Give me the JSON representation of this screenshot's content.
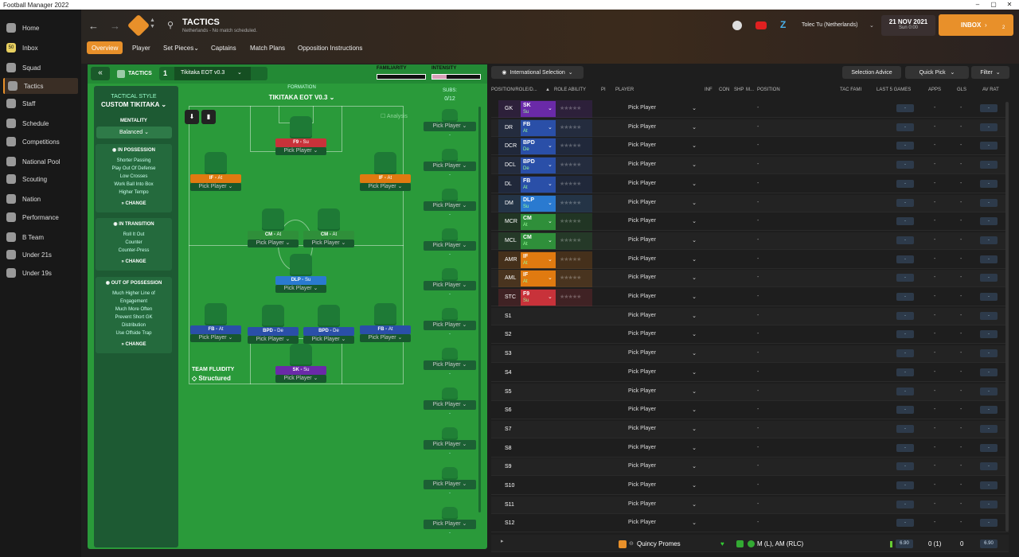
{
  "window": {
    "title": "Football Manager 2022"
  },
  "sidebar": {
    "items": [
      {
        "label": "Home",
        "icon": "home-icon"
      },
      {
        "label": "Inbox",
        "icon": "inbox-icon",
        "badge": "50"
      },
      {
        "label": "Squad",
        "icon": "squad-icon"
      },
      {
        "label": "Tactics",
        "icon": "tactics-icon"
      },
      {
        "label": "Staff",
        "icon": "staff-icon"
      },
      {
        "label": "Schedule",
        "icon": "calendar-icon"
      },
      {
        "label": "Competitions",
        "icon": "trophy-icon"
      },
      {
        "label": "National Pool",
        "icon": "list-icon"
      },
      {
        "label": "Scouting",
        "icon": "search-icon"
      },
      {
        "label": "Nation",
        "icon": "shield-icon"
      },
      {
        "label": "Performance",
        "icon": "chart-icon"
      },
      {
        "label": "B Team",
        "icon": "people-icon"
      },
      {
        "label": "Under 21s",
        "icon": "people-icon"
      },
      {
        "label": "Under 19s",
        "icon": "people-icon"
      }
    ]
  },
  "header": {
    "title": "TACTICS",
    "subtitle": "Netherlands - No match scheduled.",
    "manager": "Tolec Tu (Netherlands)",
    "date": "21 NOV 2021",
    "time": "Sun 0:00",
    "inbox_label": "INBOX",
    "inbox_count": "2"
  },
  "tabs": [
    "Overview",
    "Player",
    "Set Pieces",
    "Captains",
    "Match Plans",
    "Opposition Instructions"
  ],
  "tacbar": {
    "tactics_label": "TACTICS",
    "slot": "1",
    "tactic_name": "Tikitaka EOT v0.3",
    "familiarity": "FAMILIARITY",
    "intensity": "INTENSITY"
  },
  "left": {
    "style_label": "TACTICAL STYLE",
    "style_value": "CUSTOM TIKITAKA",
    "mentality_label": "MENTALITY",
    "mentality_value": "Balanced",
    "possession": {
      "title": "IN POSSESSION",
      "items": [
        "Shorter Passing",
        "Play Out Of Defense",
        "Low Crosses",
        "Work Ball Into Box",
        "Higher Tempo"
      ],
      "change": "CHANGE"
    },
    "transition": {
      "title": "IN TRANSITION",
      "items": [
        "Roll It Out",
        "Counter",
        "Counter-Press"
      ],
      "change": "CHANGE"
    },
    "oop": {
      "title": "OUT OF POSSESSION",
      "items": [
        "Much Higher Line of",
        "Engagement",
        "Much More Often",
        "Prevent Short GK",
        "Distribution",
        "Use Offside Trap"
      ],
      "change": "CHANGE"
    }
  },
  "formation": {
    "label": "FORMATION",
    "name": "TIKITAKA EOT V0.3",
    "subs_label": "SUBS:",
    "subs_count": "0/12",
    "analysis": "Analysis",
    "fluidity_label": "TEAM FLUIDITY",
    "fluidity_value": "Structured",
    "pick": "Pick Player",
    "players": [
      {
        "role": "F9",
        "duty": "Su",
        "color": "#c8323a"
      },
      {
        "role": "IF",
        "duty": "At",
        "color": "#e07a10"
      },
      {
        "role": "IF",
        "duty": "At",
        "color": "#e07a10"
      },
      {
        "role": "CM",
        "duty": "At",
        "color": "#2f8f3a"
      },
      {
        "role": "CM",
        "duty": "At",
        "color": "#2f8f3a"
      },
      {
        "role": "DLP",
        "duty": "Su",
        "color": "#2a7ad0"
      },
      {
        "role": "FB",
        "duty": "At",
        "color": "#2a4fa8"
      },
      {
        "role": "BPD",
        "duty": "De",
        "color": "#2a4fa8"
      },
      {
        "role": "BPD",
        "duty": "De",
        "color": "#2a4fa8"
      },
      {
        "role": "FB",
        "duty": "At",
        "color": "#2a4fa8"
      },
      {
        "role": "SK",
        "duty": "Su",
        "color": "#6a2aa8"
      }
    ]
  },
  "right": {
    "selection": "International Selection",
    "advice": "Selection Advice",
    "quick_pick": "Quick Pick",
    "filter": "Filter",
    "columns": [
      "POSITION/ROLE/D...",
      "ROLE ABILITY",
      "PI",
      "PLAYER",
      "INF",
      "CON",
      "SHP",
      "M...",
      "POSITION",
      "TAC FAMI",
      "LAST 5 GAMES",
      "APPS",
      "GLS",
      "AV RAT"
    ],
    "rows": [
      {
        "pos": "GK",
        "role": "SK",
        "duty": "Su",
        "color": "#6a2aa8"
      },
      {
        "pos": "DR",
        "role": "FB",
        "duty": "At",
        "color": "#2a4fa8"
      },
      {
        "pos": "DCR",
        "role": "BPD",
        "duty": "De",
        "color": "#2a4fa8"
      },
      {
        "pos": "DCL",
        "role": "BPD",
        "duty": "De",
        "color": "#2a4fa8"
      },
      {
        "pos": "DL",
        "role": "FB",
        "duty": "At",
        "color": "#2a4fa8"
      },
      {
        "pos": "DM",
        "role": "DLP",
        "duty": "Su",
        "color": "#2a7ad0"
      },
      {
        "pos": "MCR",
        "role": "CM",
        "duty": "At",
        "color": "#2f8f3a"
      },
      {
        "pos": "MCL",
        "role": "CM",
        "duty": "At",
        "color": "#2f8f3a"
      },
      {
        "pos": "AMR",
        "role": "IF",
        "duty": "At",
        "color": "#e07a10"
      },
      {
        "pos": "AML",
        "role": "IF",
        "duty": "At",
        "color": "#e07a10"
      },
      {
        "pos": "STC",
        "role": "F9",
        "duty": "Su",
        "color": "#c8323a"
      },
      {
        "pos": "S1"
      },
      {
        "pos": "S2"
      },
      {
        "pos": "S3"
      },
      {
        "pos": "S4"
      },
      {
        "pos": "S5"
      },
      {
        "pos": "S6"
      },
      {
        "pos": "S7"
      },
      {
        "pos": "S8"
      },
      {
        "pos": "S9"
      },
      {
        "pos": "S10"
      },
      {
        "pos": "S11"
      },
      {
        "pos": "S12"
      }
    ],
    "pick": "Pick Player",
    "dash": "-",
    "last": {
      "name": "Quincy Promes",
      "position": "M (L), AM (RLC)",
      "last5": "6.90",
      "apps": "0 (1)",
      "gls": "0",
      "avrat": "6.90"
    }
  }
}
